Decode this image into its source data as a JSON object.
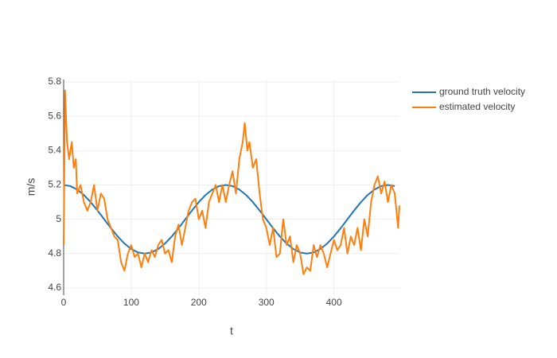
{
  "chart_data": {
    "type": "line",
    "xlabel": "t",
    "ylabel": "m/s",
    "xlim": [
      0,
      497
    ],
    "ylim": [
      4.558,
      5.814
    ],
    "xticks": [
      0,
      100,
      200,
      300,
      400
    ],
    "yticks": [
      4.6,
      4.8,
      5,
      5.2,
      5.4,
      5.6,
      5.8
    ],
    "grid": true,
    "legend": "top-right",
    "series": [
      {
        "name": "ground truth velocity",
        "color": "#1f77b4",
        "x": [
          0,
          10,
          20,
          30,
          40,
          50,
          60,
          70,
          80,
          90,
          100,
          110,
          120,
          130,
          140,
          150,
          160,
          170,
          180,
          190,
          200,
          210,
          220,
          230,
          240,
          250,
          260,
          270,
          280,
          290,
          300,
          310,
          320,
          330,
          340,
          350,
          360,
          370,
          380,
          390,
          400,
          410,
          420,
          430,
          440,
          450,
          460,
          470,
          480,
          490
        ],
        "values": [
          5.2,
          5.1932,
          5.1732,
          5.1414,
          5.1,
          5.0518,
          5.0,
          4.9482,
          4.9,
          4.8586,
          4.8268,
          4.8068,
          4.8,
          4.8068,
          4.8268,
          4.8586,
          4.9,
          4.9482,
          5.0,
          5.0518,
          5.1,
          5.1414,
          5.1732,
          5.1932,
          5.2,
          5.1932,
          5.1732,
          5.1414,
          5.1,
          5.0518,
          5.0,
          4.9482,
          4.9,
          4.8586,
          4.8268,
          4.8068,
          4.8,
          4.8068,
          4.8268,
          4.8586,
          4.9,
          4.9482,
          5.0,
          5.0518,
          5.1,
          5.1414,
          5.1732,
          5.1932,
          5.2,
          5.1932
        ]
      },
      {
        "name": "estimated velocity",
        "color": "#ff7f0e",
        "x": [
          0,
          2,
          5,
          8,
          12,
          15,
          18,
          20,
          25,
          30,
          35,
          40,
          45,
          50,
          55,
          60,
          65,
          70,
          75,
          80,
          85,
          90,
          95,
          100,
          105,
          110,
          115,
          120,
          125,
          130,
          135,
          140,
          145,
          150,
          155,
          160,
          165,
          170,
          175,
          180,
          185,
          190,
          195,
          200,
          205,
          210,
          215,
          220,
          225,
          230,
          235,
          240,
          245,
          250,
          255,
          260,
          265,
          268,
          272,
          275,
          280,
          285,
          290,
          295,
          300,
          305,
          310,
          315,
          320,
          325,
          330,
          335,
          340,
          345,
          350,
          355,
          360,
          365,
          370,
          375,
          380,
          385,
          390,
          395,
          400,
          405,
          410,
          415,
          420,
          425,
          430,
          435,
          440,
          445,
          450,
          455,
          460,
          465,
          470,
          475,
          480,
          485,
          490,
          495,
          497
        ],
        "values": [
          4.85,
          5.75,
          5.45,
          5.35,
          5.45,
          5.3,
          5.35,
          5.15,
          5.2,
          5.1,
          5.05,
          5.1,
          5.2,
          5.05,
          5.15,
          5.12,
          5.0,
          4.95,
          4.9,
          4.88,
          4.75,
          4.7,
          4.8,
          4.85,
          4.78,
          4.8,
          4.72,
          4.8,
          4.75,
          4.82,
          4.78,
          4.85,
          4.88,
          4.8,
          4.82,
          4.75,
          4.9,
          4.97,
          4.85,
          4.95,
          5.05,
          5.1,
          5.12,
          5.0,
          5.05,
          4.95,
          5.1,
          5.15,
          5.2,
          5.1,
          5.2,
          5.1,
          5.2,
          5.28,
          5.15,
          5.35,
          5.45,
          5.56,
          5.4,
          5.45,
          5.3,
          5.35,
          5.15,
          5.0,
          4.95,
          4.85,
          4.95,
          4.78,
          4.8,
          5.0,
          4.85,
          4.9,
          4.75,
          4.85,
          4.8,
          4.68,
          4.72,
          4.7,
          4.85,
          4.78,
          4.85,
          4.8,
          4.72,
          4.8,
          4.88,
          4.82,
          4.85,
          4.95,
          4.8,
          4.9,
          4.85,
          4.95,
          4.82,
          5.0,
          4.9,
          5.1,
          5.2,
          5.25,
          5.15,
          5.22,
          5.1,
          5.2,
          5.15,
          4.95,
          5.08
        ]
      }
    ]
  }
}
